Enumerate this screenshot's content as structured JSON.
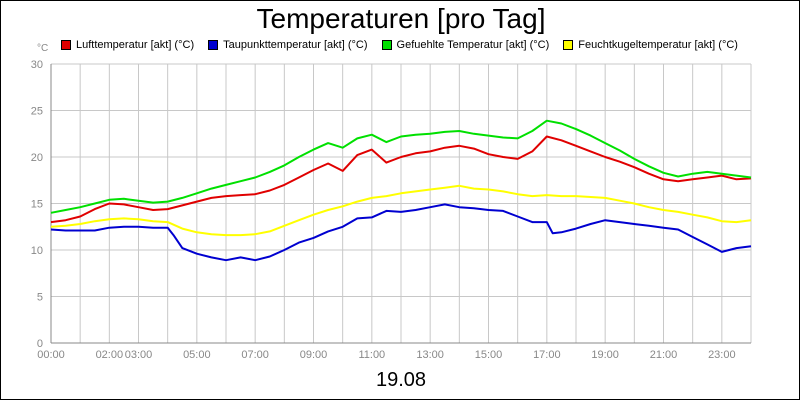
{
  "chart_data": {
    "type": "line",
    "title": "Temperaturen [pro Tag]",
    "xlabel": "19.08",
    "ylabel": "°C",
    "ylim": [
      0,
      30
    ],
    "yticks": [
      0,
      5,
      10,
      15,
      20,
      25,
      30
    ],
    "xlim": [
      0,
      24
    ],
    "xticks": [
      {
        "t": 0,
        "label": "00:00"
      },
      {
        "t": 2,
        "label": "02:00"
      },
      {
        "t": 3,
        "label": "03:00"
      },
      {
        "t": 5,
        "label": "05:00"
      },
      {
        "t": 7,
        "label": "07:00"
      },
      {
        "t": 9,
        "label": "09:00"
      },
      {
        "t": 11,
        "label": "11:00"
      },
      {
        "t": 13,
        "label": "13:00"
      },
      {
        "t": 15,
        "label": "15:00"
      },
      {
        "t": 17,
        "label": "17:00"
      },
      {
        "t": 19,
        "label": "19:00"
      },
      {
        "t": 21,
        "label": "21:00"
      },
      {
        "t": 23,
        "label": "23:00"
      }
    ],
    "grid": true,
    "legend_position": "top",
    "series": [
      {
        "name": "Lufttemperatur [akt] (°C)",
        "color": "#e00000",
        "x": [
          0,
          0.5,
          1,
          1.5,
          2,
          2.5,
          3,
          3.5,
          4,
          4.5,
          5,
          5.5,
          6,
          6.5,
          7,
          7.5,
          8,
          8.5,
          9,
          9.5,
          10,
          10.5,
          11,
          11.5,
          12,
          12.5,
          13,
          13.5,
          14,
          14.5,
          15,
          15.5,
          16,
          16.5,
          17,
          17.5,
          18,
          18.5,
          19,
          19.5,
          20,
          20.5,
          21,
          21.5,
          22,
          22.5,
          23,
          23.5,
          24
        ],
        "values": [
          13.0,
          13.2,
          13.6,
          14.4,
          15.0,
          14.9,
          14.6,
          14.3,
          14.4,
          14.8,
          15.2,
          15.6,
          15.8,
          15.9,
          16.0,
          16.4,
          17.0,
          17.8,
          18.6,
          19.3,
          18.5,
          20.2,
          20.8,
          19.4,
          20.0,
          20.4,
          20.6,
          21.0,
          21.2,
          20.9,
          20.3,
          20.0,
          19.8,
          20.6,
          22.2,
          21.8,
          21.2,
          20.6,
          20.0,
          19.5,
          18.9,
          18.2,
          17.6,
          17.4,
          17.6,
          17.8,
          18.0,
          17.6,
          17.7
        ]
      },
      {
        "name": "Taupunkttemperatur [akt] (°C)",
        "color": "#0000d0",
        "x": [
          0,
          0.5,
          1,
          1.5,
          2,
          2.5,
          3,
          3.5,
          4,
          4.2,
          4.5,
          5,
          5.5,
          6,
          6.5,
          7,
          7.5,
          8,
          8.5,
          9,
          9.5,
          10,
          10.5,
          11,
          11.5,
          12,
          12.5,
          13,
          13.5,
          14,
          14.5,
          15,
          15.5,
          16,
          16.5,
          17,
          17.2,
          17.5,
          18,
          18.5,
          19,
          19.5,
          20,
          20.5,
          21,
          21.5,
          22,
          22.5,
          23,
          23.5,
          24
        ],
        "values": [
          12.2,
          12.1,
          12.1,
          12.1,
          12.4,
          12.5,
          12.5,
          12.4,
          12.4,
          11.6,
          10.2,
          9.6,
          9.2,
          8.9,
          9.2,
          8.9,
          9.3,
          10.0,
          10.8,
          11.3,
          12.0,
          12.5,
          13.4,
          13.5,
          14.2,
          14.1,
          14.3,
          14.6,
          14.9,
          14.6,
          14.5,
          14.3,
          14.2,
          13.6,
          13.0,
          13.0,
          11.8,
          11.9,
          12.3,
          12.8,
          13.2,
          13.0,
          12.8,
          12.6,
          12.4,
          12.2,
          11.4,
          10.6,
          9.8,
          10.2,
          10.4
        ]
      },
      {
        "name": "Gefuehlte Temperatur [akt] (°C)",
        "color": "#00e000",
        "x": [
          0,
          0.5,
          1,
          1.5,
          2,
          2.5,
          3,
          3.5,
          4,
          4.5,
          5,
          5.5,
          6,
          6.5,
          7,
          7.5,
          8,
          8.5,
          9,
          9.5,
          10,
          10.5,
          11,
          11.5,
          12,
          12.5,
          13,
          13.5,
          14,
          14.5,
          15,
          15.5,
          16,
          16.5,
          17,
          17.5,
          18,
          18.5,
          19,
          19.5,
          20,
          20.5,
          21,
          21.5,
          22,
          22.5,
          23,
          23.5,
          24
        ],
        "values": [
          14.0,
          14.3,
          14.6,
          15.0,
          15.4,
          15.5,
          15.3,
          15.1,
          15.2,
          15.6,
          16.1,
          16.6,
          17.0,
          17.4,
          17.8,
          18.4,
          19.1,
          20.0,
          20.8,
          21.5,
          21.0,
          22.0,
          22.4,
          21.6,
          22.2,
          22.4,
          22.5,
          22.7,
          22.8,
          22.5,
          22.3,
          22.1,
          22.0,
          22.8,
          23.9,
          23.6,
          23.0,
          22.3,
          21.5,
          20.7,
          19.8,
          19.0,
          18.3,
          17.9,
          18.2,
          18.4,
          18.2,
          18.0,
          17.8
        ]
      },
      {
        "name": "Feuchtkugeltemperatur [akt] (°C)",
        "color": "#ffff00",
        "x": [
          0,
          0.5,
          1,
          1.5,
          2,
          2.5,
          3,
          3.5,
          4,
          4.5,
          5,
          5.5,
          6,
          6.5,
          7,
          7.5,
          8,
          8.5,
          9,
          9.5,
          10,
          10.5,
          11,
          11.5,
          12,
          12.5,
          13,
          13.5,
          14,
          14.5,
          15,
          15.5,
          16,
          16.5,
          17,
          17.5,
          18,
          18.5,
          19,
          19.5,
          20,
          20.5,
          21,
          21.5,
          22,
          22.5,
          23,
          23.5,
          24
        ],
        "values": [
          12.5,
          12.6,
          12.8,
          13.1,
          13.3,
          13.4,
          13.3,
          13.1,
          13.0,
          12.3,
          11.9,
          11.7,
          11.6,
          11.6,
          11.7,
          12.0,
          12.6,
          13.2,
          13.8,
          14.3,
          14.7,
          15.2,
          15.6,
          15.8,
          16.1,
          16.3,
          16.5,
          16.7,
          16.9,
          16.6,
          16.5,
          16.3,
          16.0,
          15.8,
          15.9,
          15.8,
          15.8,
          15.7,
          15.6,
          15.3,
          15.0,
          14.6,
          14.3,
          14.1,
          13.8,
          13.5,
          13.1,
          13.0,
          13.2
        ]
      }
    ]
  }
}
